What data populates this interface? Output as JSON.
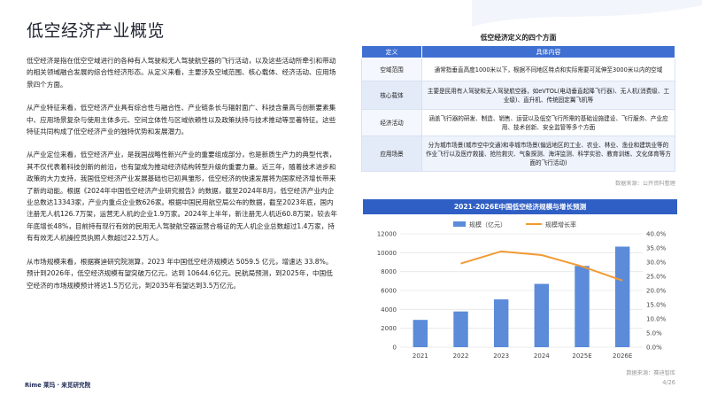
{
  "page": {
    "title": "低空经济产业概览",
    "page_number": "4/26",
    "footer_logo": "Rime 莱玛 · 来觅研究院"
  },
  "paragraphs": [
    "低空经济是指在低空空域进行的各种有人驾驶和无人驾驶航空器的飞行活动，以及这些活动所牵引和带动的相关领域融合发展的综合性经济形态。从定义来看，主要涉及空域范围、核心载体、经济活动、应用场景四个方面。",
    "从产业特征来看，低空经济产业具有综合性与融合性、产业链条长与辐射面广、科技含量高与创新要素集中、应用场景复杂与使用主体多元、空间立体性与区域依赖性以及政策扶持与技术推动等显著特征。这些特征共同构成了低空经济产业的独特优势和发展潜力。",
    "从产业定位来看，低空经济产业，是我国战略性新兴产业的重要组成部分，也是新质生产力的典型代表，其不仅代表着科技创新的前沿，也有望成为推动经济结构转型升级的重要力量。近三年，随着技术进步和政策的大力支持，我国低空经济产业发展基础也已初具雏形，低空经济的快速发展将为国家经济增长带来了新的动能。根据《2024年中国低空经济产业研究报告》的数据，截至2024年8月，低空经济产业内企业总数达13343家，产业内重点企业数626家。根据中国民用航空局公布的数据，截至2023年底，国内注册无人机126.7万架，运营无人机的企业1.9万家。2024年上半年，新注册无人机近60.8万架，较去年年底增长48%，目前持有现行有效的民用无人驾驶航空器运营合格证的无人机企业总数超过1.4万家，持有有效无人机操控员执照人数超过22.5万人。",
    "从市场规模来看，根据赛迪研究院测算，2023 年中国低空经济规模达 5059.5 亿元，增速达 33.8%。预计到2026年，低空经济规模有望突破万亿元，达到 10644.6亿元。民航局预测，到2025年，中国低空经济的市场规模预计将达1.5万亿元，到2035年有望达到3.5万亿元。"
  ],
  "def_table": {
    "title": "低空经济定义的四个方面",
    "headers": [
      "定义",
      "具体内容"
    ],
    "rows": [
      {
        "k": "空域范围",
        "v": "通常指垂直高度1000米以下，根据不同地区特点和实际需要可延伸至3000米以内的空域"
      },
      {
        "k": "核心载体",
        "v": "主要是民用有人驾驶和无人驾驶航空器，如eVTOL(电动垂直起降飞行器)、无人机(消费级、工业级)、直升机、传统固定翼飞机等"
      },
      {
        "k": "经济活动",
        "v": "涵盖飞行器的研发、制造、销售、运营以及低空飞行所需的基础设施建设、飞行服务、产业应用、技术创新、安全监管等多个方面"
      },
      {
        "k": "应用场景",
        "v": "分为城市场景(城市空中交通)和非城市场景(偏远地区的工业、农业、林业、渔业和建筑业等的作业飞行以及医疗救援、抢险救灾、气象探测、海洋监测、科学实验、教育训练、文化体育等方面的飞行活动)"
      }
    ],
    "source": "数据来源：公开资料整理"
  },
  "chart_data": {
    "type": "bar",
    "title": "2021-2026E中国低空经济规模与增长预测",
    "categories": [
      "2021",
      "2022",
      "2023",
      "2024",
      "2025E",
      "2026E"
    ],
    "series": [
      {
        "name": "规模（亿元）",
        "type": "bar",
        "axis": "left",
        "color": "#5b8bd9",
        "values": [
          2890,
          3780,
          5059.5,
          6700,
          8600,
          10644.6
        ]
      },
      {
        "name": "规模增长率",
        "type": "line",
        "axis": "right",
        "color": "#f29a33",
        "values": [
          null,
          0.295,
          0.338,
          0.325,
          0.285,
          0.235
        ]
      }
    ],
    "y_left": {
      "min": 0,
      "max": 12000,
      "ticks": [
        "0",
        "2000",
        "4000",
        "6000",
        "8000",
        "10000",
        "12000"
      ]
    },
    "y_right": {
      "min": 0,
      "max": 0.4,
      "ticks": [
        "0.0%",
        "5.0%",
        "10.0%",
        "15.0%",
        "20.0%",
        "25.0%",
        "30.0%",
        "35.0%",
        "40.0%"
      ]
    },
    "grid": true,
    "legend": "top-center",
    "source": "数据来源：赛迪智库"
  }
}
